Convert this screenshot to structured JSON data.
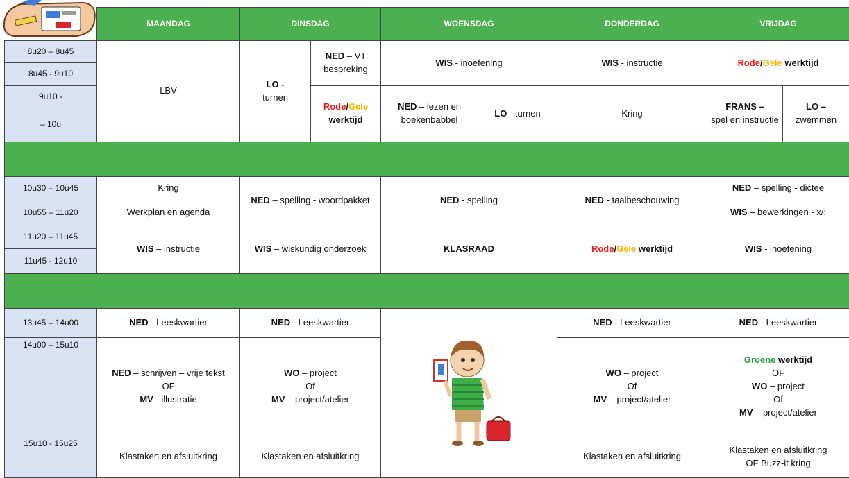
{
  "header": {
    "days": [
      "MAANDAG",
      "DINSDAG",
      "WOENSDAG",
      "DONDERDAG",
      "VRIJDAG"
    ]
  },
  "times": [
    "8u20 – 8u45",
    "8u45 - 9u10",
    "9u10 -",
    "– 10u",
    "10u30 – 10u45",
    "10u55 – 11u20",
    "11u20 – 11u45",
    "11u45 - 12u10",
    "13u45 – 14u00",
    "14u00 – 15u10",
    "15u10 - 15u25"
  ],
  "cells": [
    [
      "LBV"
    ],
    [
      "LO -",
      "turnen"
    ],
    [
      "NED",
      "– VT bespreking"
    ],
    [
      "WIS",
      "- inoefening"
    ],
    [
      "WIS",
      "- instructie"
    ],
    [
      "Rode",
      "/",
      "Gele",
      "werktijd"
    ],
    [
      "Rode",
      "/",
      "Gele",
      "werktijd"
    ],
    [
      "NED",
      "– lezen en boekenbabbel"
    ],
    [
      "LO",
      "- turnen"
    ],
    [
      "Kring"
    ],
    [
      "FRANS –",
      "spel en instructie"
    ],
    [
      "LO –",
      "zwemmen"
    ],
    [
      "Kring"
    ],
    [
      "NED",
      "– spelling - woordpakket"
    ],
    [
      "NED",
      "- spelling"
    ],
    [
      "NED",
      "- taalbeschouwing"
    ],
    [
      "NED",
      "– spelling - dictee"
    ],
    [
      "Werkplan en agenda"
    ],
    [
      "WIS",
      "– bewerkingen - x/:"
    ],
    [
      "WIS",
      "– instructie"
    ],
    [
      "WIS",
      "– wiskundig onderzoek"
    ],
    [
      "KLASRAAD"
    ],
    [
      "Rode",
      "/",
      "Gele",
      "werktijd"
    ],
    [
      "WIS",
      "- inoefening"
    ],
    [
      "NED",
      "- Leeskwartier"
    ],
    [
      "NED",
      "- Leeskwartier"
    ],
    [
      "NED",
      "- Leeskwartier"
    ],
    [
      "NED",
      "- Leeskwartier"
    ],
    [
      "NED",
      "– schrijven – vrije tekst",
      "OF",
      "MV",
      "- illustratie"
    ],
    [
      "WO",
      "– project",
      "Of",
      "MV",
      "– project/atelier"
    ],
    [
      "WO",
      "– project",
      "Of",
      "MV",
      "– project/atelier"
    ],
    [
      "Groene",
      "werktijd",
      "OF",
      "WO",
      "– project",
      "Of",
      "MV",
      "– project/atelier"
    ],
    [
      "Klastaken en afsluitkring"
    ],
    [
      "Klastaken en afsluitkring"
    ],
    [
      "Klastaken en afsluitkring"
    ],
    [
      "Klastaken en afsluitkring",
      "OF  Buzz-it kring"
    ]
  ]
}
